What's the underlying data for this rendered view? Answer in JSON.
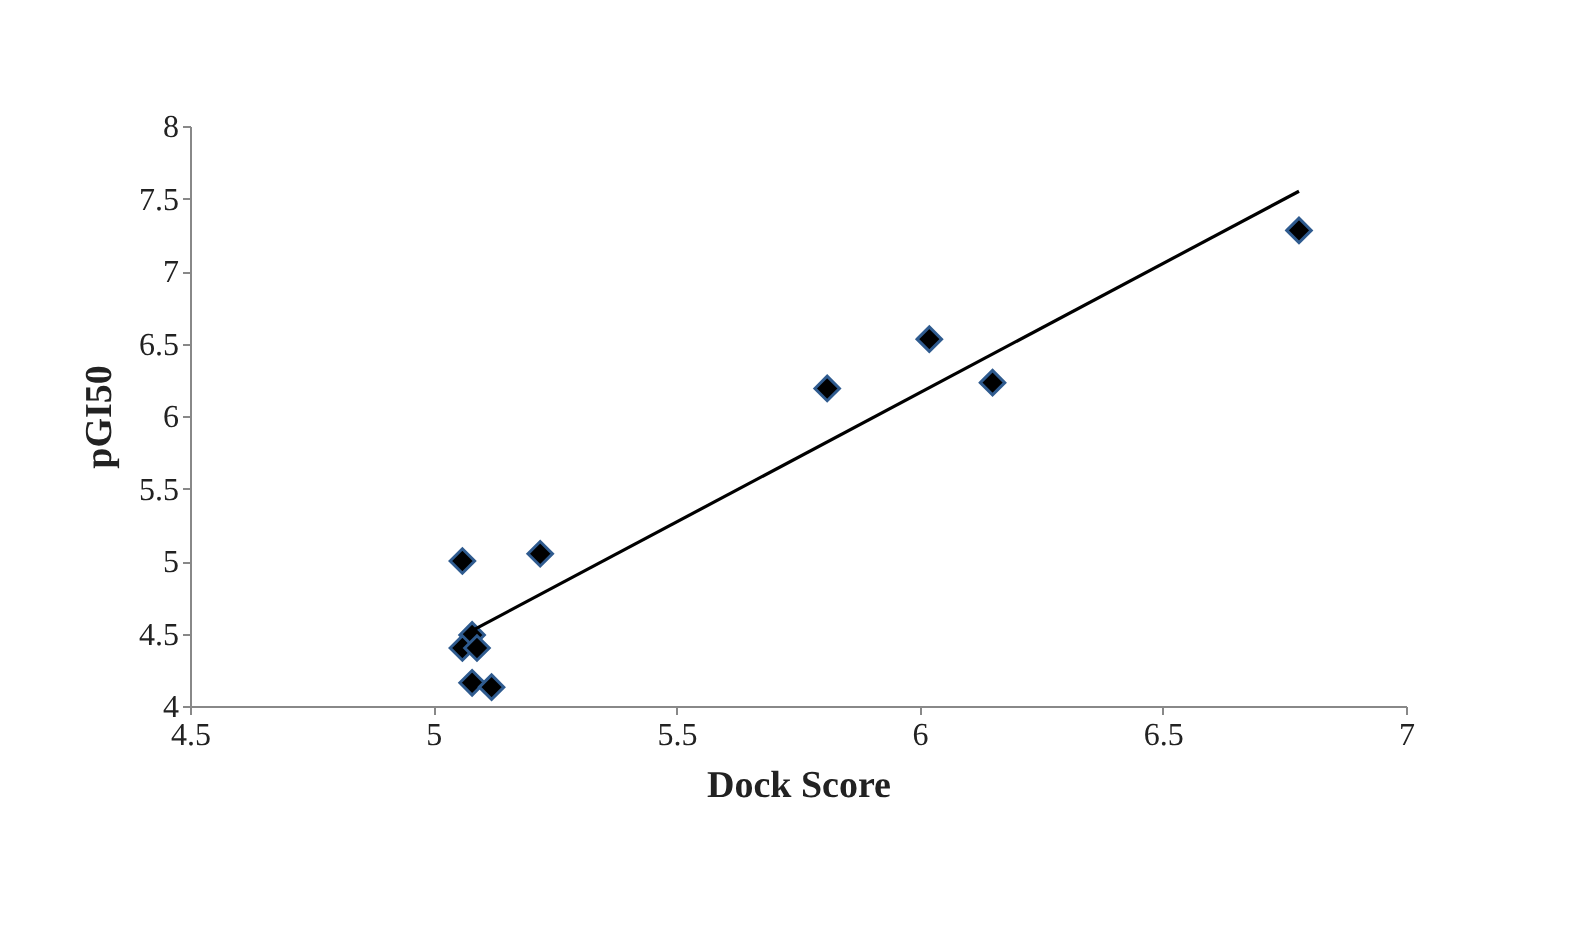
{
  "chart_data": {
    "type": "scatter",
    "xlabel": "Dock Score",
    "ylabel": "pGI50",
    "xlim": [
      4.5,
      7
    ],
    "xticks": [
      4.5,
      5,
      5.5,
      6,
      6.5,
      7
    ],
    "ylim": [
      4,
      8
    ],
    "yticks": [
      4,
      4.5,
      5,
      5.5,
      6,
      6.5,
      7,
      7.5,
      8
    ],
    "grid": false,
    "legend": false,
    "series": [
      {
        "marker": "diamond",
        "color": "#000000",
        "x": [
          5.06,
          5.22,
          5.08,
          5.06,
          5.09,
          5.08,
          5.12,
          5.81,
          6.02,
          6.15,
          6.78
        ],
        "values": [
          5.0,
          5.05,
          4.49,
          4.4,
          4.4,
          4.16,
          4.13,
          6.19,
          6.53,
          6.23,
          7.28
        ]
      },
      {
        "type": "line",
        "marker": "none",
        "color": "#000000",
        "x": [
          5.08,
          6.78
        ],
        "values": [
          4.52,
          7.55
        ]
      }
    ]
  }
}
